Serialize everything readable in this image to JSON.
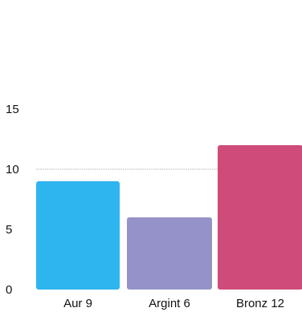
{
  "chart_data": {
    "type": "bar",
    "categories": [
      "Aur 9",
      "Argint 6",
      "Bronz 12"
    ],
    "values": [
      9,
      6,
      12
    ],
    "ylim": [
      0,
      15
    ],
    "yticks": [
      0,
      5,
      10,
      15
    ],
    "gridlines": [
      10
    ],
    "title": "",
    "xlabel": "",
    "ylabel": "",
    "colors": [
      "#2eb4ef",
      "#9492c9",
      "#cf4b7a"
    ]
  }
}
